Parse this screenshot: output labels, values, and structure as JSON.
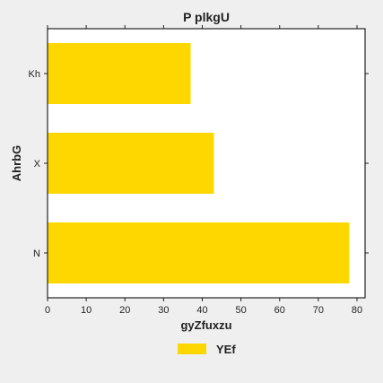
{
  "chart_data": {
    "type": "bar",
    "orientation": "horizontal",
    "title": "P plkgU",
    "xlabel": "gyZfuxzu",
    "ylabel": "AhrbG",
    "categories": [
      "Kh",
      "X",
      "N"
    ],
    "series": [
      {
        "name": "YEf",
        "values": [
          37,
          43,
          78
        ],
        "color": "#FFD700"
      }
    ],
    "xlim": [
      0,
      80
    ],
    "xticks": [
      0,
      10,
      20,
      30,
      40,
      50,
      60,
      70,
      80
    ],
    "grid": false,
    "legend_position": "bottom-center"
  }
}
